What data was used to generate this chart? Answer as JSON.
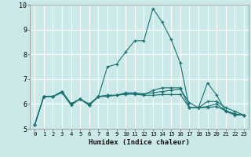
{
  "xlabel": "Humidex (Indice chaleur)",
  "bg_color": "#cce9e9",
  "grid_color": "#ffffff",
  "line_color": "#1a7070",
  "xlim": [
    -0.5,
    23.5
  ],
  "ylim": [
    5,
    10
  ],
  "yticks": [
    5,
    6,
    7,
    8,
    9,
    10
  ],
  "xticks": [
    0,
    1,
    2,
    3,
    4,
    5,
    6,
    7,
    8,
    9,
    10,
    11,
    12,
    13,
    14,
    15,
    16,
    17,
    18,
    19,
    20,
    21,
    22,
    23
  ],
  "series": [
    [
      5.15,
      6.3,
      6.3,
      6.5,
      6.0,
      6.2,
      5.95,
      6.3,
      7.5,
      7.6,
      8.1,
      8.55,
      8.55,
      9.85,
      9.3,
      8.6,
      7.65,
      5.85,
      5.85,
      6.85,
      6.35,
      5.7,
      5.55,
      5.55
    ],
    [
      5.15,
      6.3,
      6.3,
      6.5,
      6.0,
      6.2,
      5.95,
      6.3,
      6.35,
      6.35,
      6.45,
      6.45,
      6.4,
      6.45,
      6.5,
      6.55,
      6.6,
      6.05,
      5.85,
      6.1,
      6.1,
      5.85,
      5.7,
      5.55
    ],
    [
      5.15,
      6.3,
      6.3,
      6.45,
      5.95,
      6.2,
      5.95,
      6.3,
      6.35,
      6.35,
      6.4,
      6.4,
      6.38,
      6.55,
      6.65,
      6.65,
      6.65,
      5.85,
      5.85,
      5.9,
      6.0,
      5.72,
      5.6,
      5.55
    ],
    [
      5.15,
      6.3,
      6.3,
      6.5,
      6.0,
      6.2,
      6.0,
      6.3,
      6.3,
      6.35,
      6.4,
      6.4,
      6.35,
      6.35,
      6.38,
      6.38,
      6.38,
      5.85,
      5.85,
      5.85,
      5.9,
      5.72,
      5.6,
      5.55
    ]
  ]
}
